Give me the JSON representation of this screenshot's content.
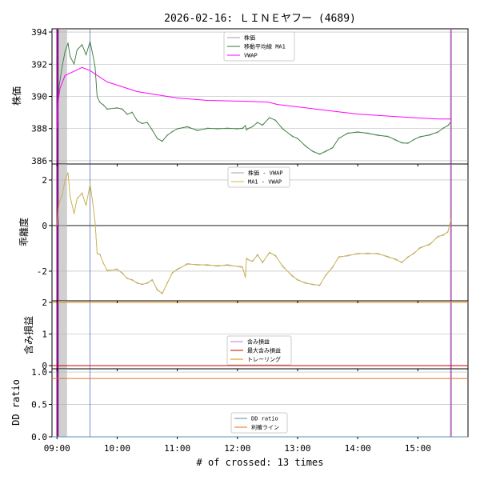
{
  "chart_data": {
    "type": "line",
    "title": "2026-02-16: ＬＩＮＥヤフー (4689)",
    "xlabel": "# of crossed: 13 times",
    "x_ticks": [
      "09:00",
      "10:00",
      "11:00",
      "12:00",
      "13:00",
      "14:00",
      "15:00"
    ],
    "colors": {
      "price": "#a0a0a0",
      "ma1": "#2e7d32",
      "vwap": "#ff00ff",
      "dev_price": "#a0a0a0",
      "dev_ma1": "#d4b43c",
      "profit": "#c86cf0",
      "max_profit": "#cc0000",
      "trailing": "#e08a00",
      "dd_ratio": "#5a8fb0",
      "take_profit": "#e07020",
      "shade": "#b0b0b0",
      "marker": "#800080",
      "marker_end": "#b060b0"
    },
    "panels": [
      {
        "ylabel": "株価",
        "ylim": [
          385.8,
          394.2
        ],
        "yticks": [
          386,
          388,
          390,
          392,
          394
        ],
        "legend": [
          "株価",
          "移動平均線 MA1",
          "VWAP"
        ],
        "vwap_points": [
          [
            0,
            388.0
          ],
          [
            1,
            389.6
          ],
          [
            3,
            390.5
          ],
          [
            8,
            391.3
          ],
          [
            15,
            391.5
          ],
          [
            25,
            391.8
          ],
          [
            33,
            391.6
          ],
          [
            50,
            390.9
          ],
          [
            80,
            390.3
          ],
          [
            120,
            389.9
          ],
          [
            150,
            389.75
          ],
          [
            185,
            389.7
          ],
          [
            210,
            389.65
          ],
          [
            220,
            389.5
          ],
          [
            260,
            389.2
          ],
          [
            300,
            388.9
          ],
          [
            350,
            388.7
          ],
          [
            380,
            388.6
          ],
          [
            393,
            388.6
          ]
        ],
        "price_points": [
          [
            0,
            388.0
          ],
          [
            2,
            390.6
          ],
          [
            5,
            391.8
          ],
          [
            8,
            392.8
          ],
          [
            11,
            393.3
          ],
          [
            13,
            392.5
          ],
          [
            17,
            392.0
          ],
          [
            20,
            392.9
          ],
          [
            25,
            393.2
          ],
          [
            29,
            392.6
          ],
          [
            33,
            393.4
          ],
          [
            36,
            392.5
          ],
          [
            38,
            391.8
          ],
          [
            40,
            390.0
          ],
          [
            43,
            389.6
          ],
          [
            46,
            389.5
          ],
          [
            50,
            389.2
          ],
          [
            60,
            389.3
          ],
          [
            65,
            389.2
          ],
          [
            70,
            388.9
          ],
          [
            75,
            389.0
          ],
          [
            80,
            388.5
          ],
          [
            85,
            388.3
          ],
          [
            90,
            388.4
          ],
          [
            95,
            387.9
          ],
          [
            100,
            387.4
          ],
          [
            105,
            387.2
          ],
          [
            110,
            387.6
          ],
          [
            115,
            387.8
          ],
          [
            120,
            388.0
          ],
          [
            130,
            388.1
          ],
          [
            140,
            387.9
          ],
          [
            150,
            388.0
          ],
          [
            160,
            388.0
          ],
          [
            170,
            388.0
          ],
          [
            180,
            388.0
          ],
          [
            185,
            388.0
          ],
          [
            188,
            388.2
          ],
          [
            189,
            387.9
          ],
          [
            190,
            388.0
          ],
          [
            195,
            388.1
          ],
          [
            200,
            388.4
          ],
          [
            205,
            388.2
          ],
          [
            212,
            388.7
          ],
          [
            218,
            388.5
          ],
          [
            225,
            388.0
          ],
          [
            235,
            387.5
          ],
          [
            240,
            387.4
          ],
          [
            248,
            386.9
          ],
          [
            255,
            386.6
          ],
          [
            262,
            386.4
          ],
          [
            268,
            386.6
          ],
          [
            275,
            386.8
          ],
          [
            281,
            387.4
          ],
          [
            290,
            387.7
          ],
          [
            300,
            387.8
          ],
          [
            310,
            387.7
          ],
          [
            320,
            387.6
          ],
          [
            330,
            387.5
          ],
          [
            338,
            387.3
          ],
          [
            344,
            387.1
          ],
          [
            350,
            387.1
          ],
          [
            356,
            387.3
          ],
          [
            362,
            387.5
          ],
          [
            372,
            387.6
          ],
          [
            380,
            387.8
          ],
          [
            385,
            388.0
          ],
          [
            390,
            388.2
          ],
          [
            393,
            388.4
          ]
        ]
      },
      {
        "ylabel": "乖離度",
        "ylim": [
          -3.3,
          2.7
        ],
        "yticks": [
          -2,
          0,
          2
        ],
        "legend": [
          "株価 - VWAP",
          "MA1 - VWAP"
        ],
        "dev_points": [
          [
            0,
            0.0
          ],
          [
            2,
            1.0
          ],
          [
            5,
            1.3
          ],
          [
            8,
            2.0
          ],
          [
            11,
            2.3
          ],
          [
            13,
            1.3
          ],
          [
            17,
            0.5
          ],
          [
            20,
            1.2
          ],
          [
            25,
            1.4
          ],
          [
            29,
            0.9
          ],
          [
            33,
            1.8
          ],
          [
            36,
            0.9
          ],
          [
            38,
            0.1
          ],
          [
            40,
            -1.2
          ],
          [
            43,
            -1.3
          ],
          [
            46,
            -1.6
          ],
          [
            50,
            -2.0
          ],
          [
            60,
            -1.9
          ],
          [
            65,
            -2.1
          ],
          [
            70,
            -2.3
          ],
          [
            75,
            -2.4
          ],
          [
            80,
            -2.5
          ],
          [
            85,
            -2.6
          ],
          [
            90,
            -2.5
          ],
          [
            95,
            -2.4
          ],
          [
            100,
            -2.8
          ],
          [
            105,
            -3.0
          ],
          [
            110,
            -2.5
          ],
          [
            115,
            -2.1
          ],
          [
            120,
            -1.9
          ],
          [
            130,
            -1.7
          ],
          [
            140,
            -1.7
          ],
          [
            150,
            -1.75
          ],
          [
            160,
            -1.75
          ],
          [
            170,
            -1.75
          ],
          [
            185,
            -1.8
          ],
          [
            188,
            -2.3
          ],
          [
            189,
            -1.4
          ],
          [
            190,
            -1.5
          ],
          [
            195,
            -1.55
          ],
          [
            200,
            -1.3
          ],
          [
            205,
            -1.6
          ],
          [
            212,
            -1.2
          ],
          [
            218,
            -1.3
          ],
          [
            225,
            -1.8
          ],
          [
            235,
            -2.2
          ],
          [
            240,
            -2.4
          ],
          [
            248,
            -2.5
          ],
          [
            255,
            -2.6
          ],
          [
            262,
            -2.6
          ],
          [
            268,
            -2.2
          ],
          [
            275,
            -1.8
          ],
          [
            281,
            -1.4
          ],
          [
            290,
            -1.3
          ],
          [
            300,
            -1.25
          ],
          [
            310,
            -1.2
          ],
          [
            320,
            -1.25
          ],
          [
            330,
            -1.35
          ],
          [
            338,
            -1.5
          ],
          [
            344,
            -1.6
          ],
          [
            350,
            -1.4
          ],
          [
            356,
            -1.2
          ],
          [
            362,
            -1.0
          ],
          [
            372,
            -0.8
          ],
          [
            380,
            -0.5
          ],
          [
            385,
            -0.4
          ],
          [
            390,
            -0.3
          ],
          [
            393,
            0.3
          ]
        ]
      },
      {
        "ylabel": "含み損益",
        "ylim": [
          -0.1,
          2.05
        ],
        "yticks": [
          0,
          1,
          2
        ],
        "legend": [
          "含み損益",
          "最大含み損益",
          "トレーリング"
        ],
        "profit_value": 0,
        "max_profit_value": 0,
        "trailing_value": 2
      },
      {
        "ylabel": "DD ratio",
        "ylim": [
          0,
          1.05
        ],
        "yticks": [
          "0.0",
          "0.5",
          "1.0"
        ],
        "legend": [
          "DD ratio",
          "利確ライン"
        ],
        "dd_value": 0,
        "take_profit_value": 0.9
      }
    ],
    "x_range_minutes": [
      -5,
      410
    ],
    "x_tick_minutes": [
      0,
      60,
      120,
      180,
      240,
      300,
      360
    ],
    "shaded_span_minutes": [
      0,
      10
    ],
    "vertical_markers_minutes": [
      0,
      1,
      393
    ],
    "thin_vline_minutes": [
      33
    ]
  }
}
